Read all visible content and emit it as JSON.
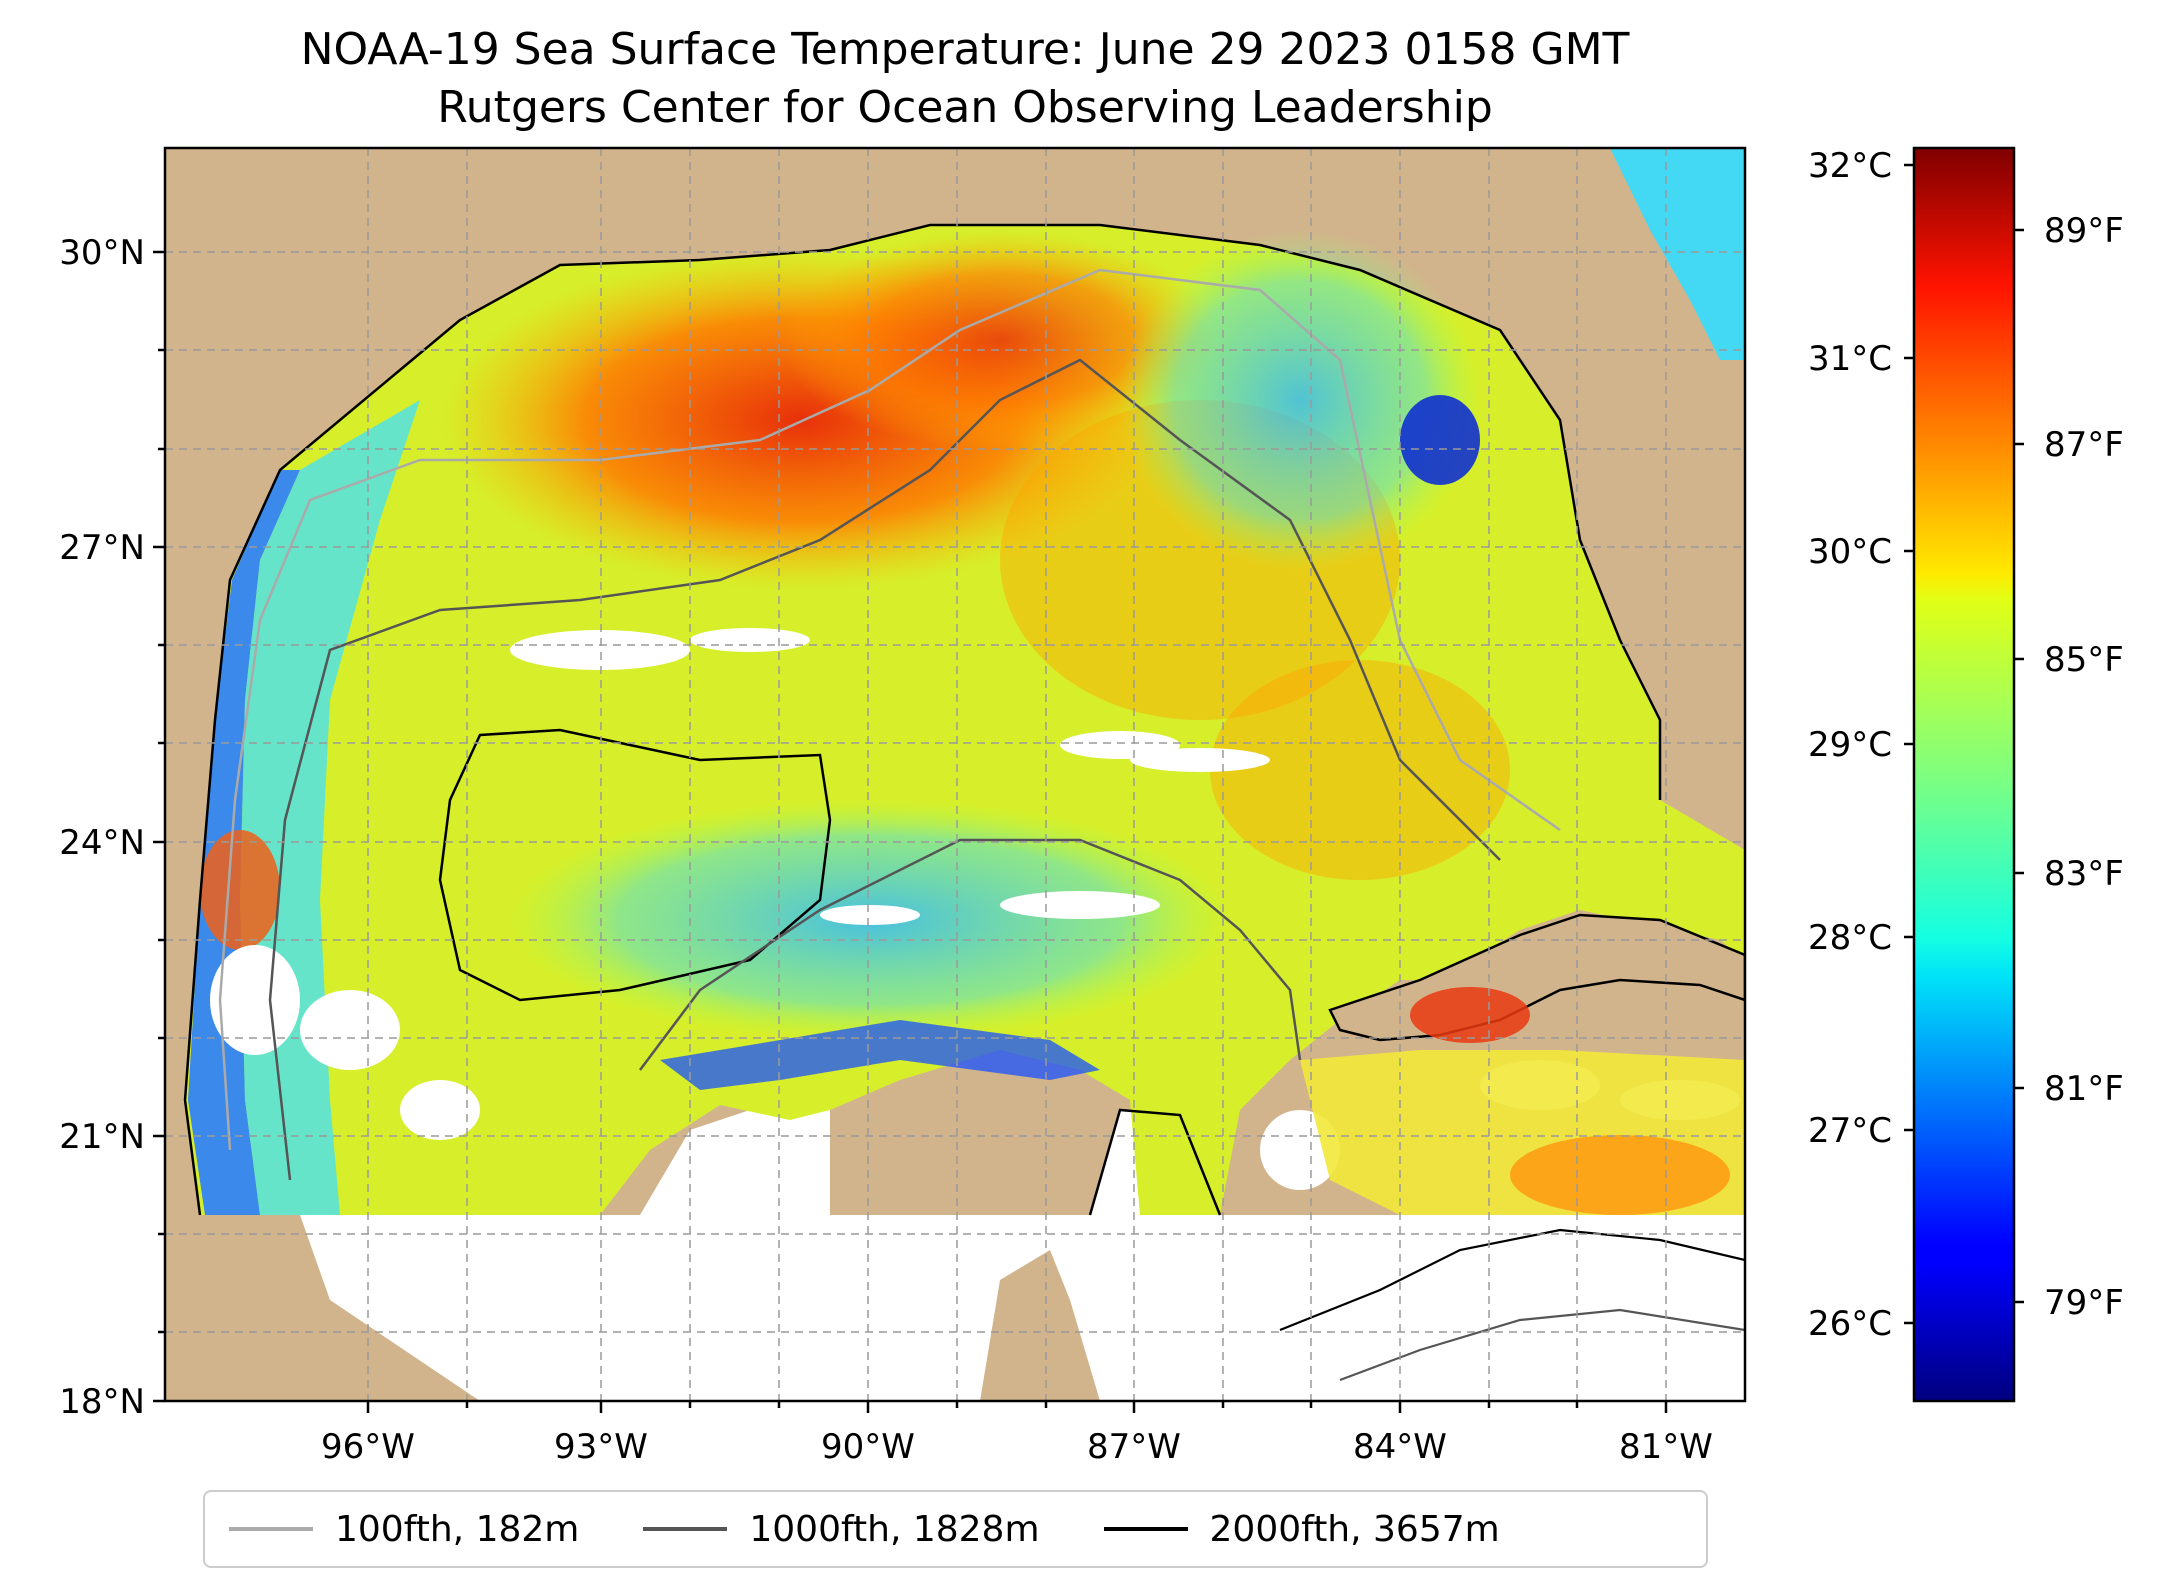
{
  "title": {
    "line1": "NOAA-19 Sea Surface Temperature: June 29 2023 0158 GMT",
    "line2": "Rutgers Center for Ocean Observing Leadership"
  },
  "map": {
    "lat_ticks": [
      "30°N",
      "27°N",
      "24°N",
      "21°N",
      "18°N"
    ],
    "lon_ticks": [
      "96°W",
      "93°W",
      "90°W",
      "87°W",
      "84°W",
      "81°W"
    ],
    "lat_range": [
      18,
      31.3
    ],
    "lon_range": [
      -98.3,
      -80.2
    ],
    "grid": true,
    "land_color": "#d2b48c",
    "missing_color": "#ffffff"
  },
  "colorbar": {
    "celsius_ticks": [
      "32°C",
      "31°C",
      "30°C",
      "29°C",
      "28°C",
      "27°C",
      "26°C"
    ],
    "fahrenheit_ticks": [
      "89°F",
      "87°F",
      "85°F",
      "83°F",
      "81°F",
      "79°F"
    ],
    "colormap": "jet",
    "range_c": [
      25.6,
      32.1
    ]
  },
  "legend": {
    "items": [
      {
        "label": "100fth, 182m",
        "color": "#aaaaaa"
      },
      {
        "label": "1000fth, 1828m",
        "color": "#555555"
      },
      {
        "label": "2000fth, 3657m",
        "color": "#000000"
      }
    ]
  }
}
